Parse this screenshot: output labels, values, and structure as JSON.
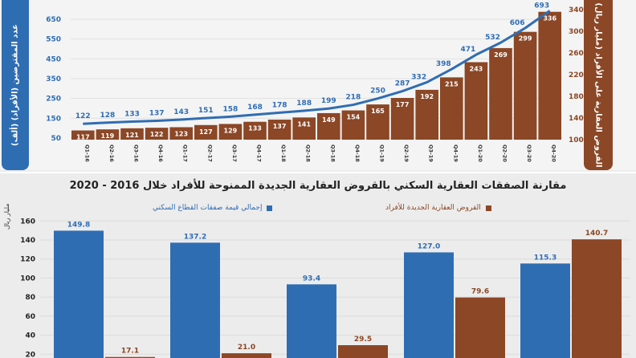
{
  "chart_data": [
    {
      "type": "bar+line",
      "title": "",
      "categories": [
        "Q1-16",
        "Q2-16",
        "Q3-16",
        "Q4-16",
        "Q1-17",
        "Q2-17",
        "Q3-17",
        "Q4-17",
        "Q1-18",
        "Q2-18",
        "Q3-18",
        "Q4-18",
        "Q1-19",
        "Q2-19",
        "Q3-19",
        "Q4-19",
        "Q1-20",
        "Q2-20",
        "Q3-20",
        "Q4-20"
      ],
      "series": [
        {
          "name": "القروض العقارية على الأفراد",
          "type": "bar",
          "axis": "right",
          "color": "#8b4726",
          "values": [
            117,
            119,
            121,
            122,
            123,
            127,
            129,
            133,
            137,
            141,
            149,
            154,
            165,
            177,
            192,
            215,
            243,
            269,
            299,
            336
          ]
        },
        {
          "name": "عدد المقترضين",
          "type": "line",
          "axis": "left",
          "color": "#2f6db3",
          "values": [
            122,
            128,
            133,
            137,
            143,
            151,
            158,
            168,
            178,
            188,
            199,
            218,
            250,
            287,
            332,
            398,
            471,
            532,
            606,
            693
          ]
        }
      ],
      "ylabel_left": "عدد المقترضين (الأفراد) (ألف)",
      "ylabel_right": "القروض العقارية على الأفراد (مليار ريال)",
      "yticks_left": [
        50,
        150,
        250,
        350,
        450,
        550,
        650
      ],
      "yticks_right": [
        100,
        140,
        180,
        220,
        260,
        300,
        340
      ],
      "ylim_left": [
        50,
        750
      ],
      "ylim_right": [
        100,
        340
      ],
      "grid": true
    },
    {
      "type": "bar",
      "title": "مقارنة الصفقات العقارية السكني بالقروض العقارية الجديدة الممنوحة للأفراد خلال 2016 - 2020",
      "ylabel": "مليار ريال",
      "ylim": [
        0,
        160
      ],
      "yticks": [
        20,
        40,
        60,
        80,
        100,
        120,
        140,
        160
      ],
      "series": [
        {
          "name": "إجمالي قيمة صفقات القطاع السكني",
          "color": "#2f6db3",
          "values": [
            149.8,
            137.2,
            93.4,
            127.0,
            115.3
          ]
        },
        {
          "name": "القروض العقارية الجديدة للأفراد",
          "color": "#8b4726",
          "values": [
            17.1,
            21.0,
            29.5,
            79.6,
            140.7
          ]
        }
      ],
      "legend_position": "top",
      "grid": true
    }
  ]
}
